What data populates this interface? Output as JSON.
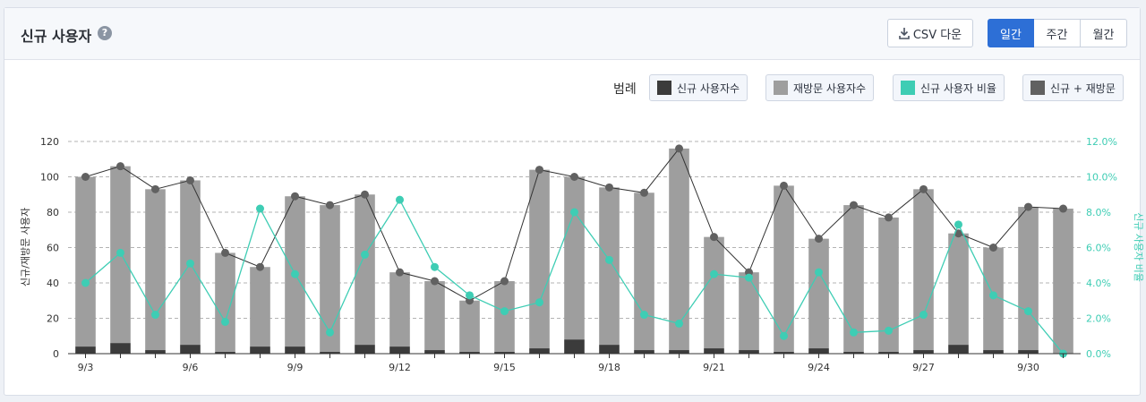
{
  "header": {
    "title": "신규 사용자",
    "help_icon": "?",
    "csv_label": "CSV 다운",
    "periods": [
      "일간",
      "주간",
      "월간"
    ],
    "active_period": "일간"
  },
  "legend": {
    "label": "범례",
    "items": [
      {
        "label": "신규 사용자수",
        "color": "#3b3b3b"
      },
      {
        "label": "재방문 사용자수",
        "color": "#9e9e9e"
      },
      {
        "label": "신규 사용자 비율",
        "color": "#3ecdb4"
      },
      {
        "label": "신규 + 재방문",
        "color": "#616161"
      }
    ]
  },
  "colors": {
    "new": "#3b3b3b",
    "returning": "#9e9e9e",
    "ratio": "#3ecdb4",
    "total": "#616161",
    "accent": "#2d6fd6"
  },
  "chart_data": {
    "type": "bar",
    "x": [
      "9/3",
      "9/4",
      "9/5",
      "9/6",
      "9/7",
      "9/8",
      "9/9",
      "9/10",
      "9/11",
      "9/12",
      "9/13",
      "9/14",
      "9/15",
      "9/16",
      "9/17",
      "9/18",
      "9/19",
      "9/20",
      "9/21",
      "9/22",
      "9/23",
      "9/24",
      "9/25",
      "9/26",
      "9/27",
      "9/28",
      "9/29",
      "9/30",
      "10/1"
    ],
    "xtick_labels": [
      "9/3",
      "9/6",
      "9/9",
      "9/12",
      "9/15",
      "9/18",
      "9/21",
      "9/24",
      "9/27",
      "9/30"
    ],
    "xtick_every": 3,
    "series": [
      {
        "name": "신규 사용자수",
        "type": "bar",
        "axis": "left",
        "values": [
          4,
          6,
          2,
          5,
          1,
          4,
          4,
          1,
          5,
          4,
          2,
          1,
          1,
          3,
          8,
          5,
          2,
          2,
          3,
          2,
          1,
          3,
          1,
          1,
          2,
          5,
          2,
          2,
          0
        ]
      },
      {
        "name": "재방문 사용자수",
        "type": "bar",
        "axis": "left",
        "values": [
          96,
          100,
          91,
          93,
          56,
          45,
          85,
          83,
          85,
          42,
          39,
          29,
          40,
          101,
          92,
          89,
          89,
          114,
          63,
          44,
          94,
          62,
          83,
          76,
          91,
          63,
          58,
          81,
          82
        ]
      },
      {
        "name": "신규 사용자 비율",
        "type": "line",
        "axis": "right",
        "values": [
          4.0,
          5.7,
          2.2,
          5.1,
          1.8,
          8.2,
          4.5,
          1.2,
          5.6,
          8.7,
          4.9,
          3.3,
          2.4,
          2.9,
          8.0,
          5.3,
          2.2,
          1.7,
          4.5,
          4.3,
          1.0,
          4.6,
          1.2,
          1.3,
          2.2,
          7.3,
          3.3,
          2.4,
          0.0
        ]
      },
      {
        "name": "신규 + 재방문",
        "type": "line",
        "axis": "left",
        "values": [
          100,
          106,
          93,
          98,
          57,
          49,
          89,
          84,
          90,
          46,
          41,
          30,
          41,
          104,
          100,
          94,
          91,
          116,
          66,
          46,
          95,
          65,
          84,
          77,
          93,
          68,
          60,
          83,
          82
        ]
      }
    ],
    "ylabel": "신규/재방문 사용자",
    "y2label": "신규 사용자 비율",
    "ylim": [
      0,
      120
    ],
    "yticks": [
      "0",
      "20",
      "40",
      "60",
      "80",
      "100",
      "120"
    ],
    "y2lim": [
      0,
      12
    ],
    "y2ticks": [
      "0.0%",
      "2.0%",
      "4.0%",
      "6.0%",
      "8.0%",
      "10.0%",
      "12.0%"
    ],
    "grid": true
  }
}
